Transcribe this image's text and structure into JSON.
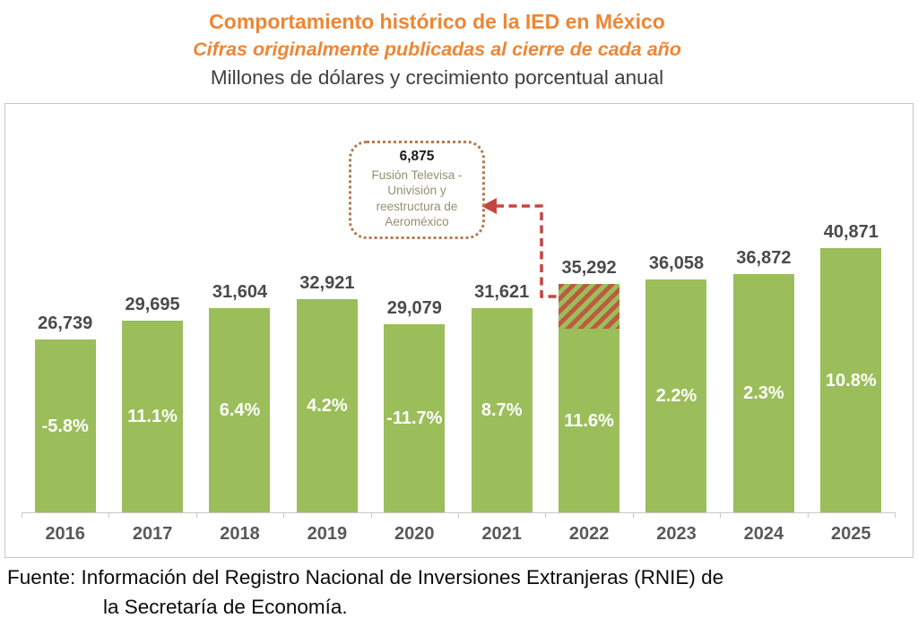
{
  "chart_data": {
    "type": "bar",
    "title": "Comportamiento histórico de la IED en México",
    "subtitle": "Cifras originalmente publicadas al cierre de cada año",
    "units_label": "Millones de dólares y crecimiento porcentual anual",
    "categories": [
      "2016",
      "2017",
      "2018",
      "2019",
      "2020",
      "2021",
      "2022",
      "2023",
      "2024",
      "2025"
    ],
    "series": [
      {
        "name": "IED (millones de dólares)",
        "values": [
          26739,
          29695,
          31604,
          32921,
          29079,
          31621,
          35292,
          36058,
          36872,
          40871
        ],
        "value_labels": [
          "26,739",
          "29,695",
          "31,604",
          "32,921",
          "29,079",
          "31,621",
          "35,292",
          "36,058",
          "36,872",
          "40,871"
        ]
      },
      {
        "name": "Crecimiento porcentual anual",
        "values": [
          -5.8,
          11.1,
          6.4,
          4.2,
          -11.7,
          8.7,
          11.6,
          2.2,
          2.3,
          10.8
        ],
        "value_labels": [
          "-5.8%",
          "11.1%",
          "6.4%",
          "4.2%",
          "-11.7%",
          "8.7%",
          "11.6%",
          "2.2%",
          "2.3%",
          "10.8%"
        ]
      }
    ],
    "ylim": [
      0,
      42000
    ],
    "grid": false,
    "legend": "none",
    "annotation": {
      "value": 6875,
      "value_label": "6,875",
      "text": "Fusión Televisa - Univisión y reestructura de Aeroméxico",
      "target_category": "2022",
      "target_index": 6,
      "hatch_value": 6875
    }
  },
  "colors": {
    "accent_orange": "#EE8633",
    "bar_green": "#9BBE5B",
    "hatch_stripe_red": "#BB5C40",
    "arrow_red": "#C64540",
    "annotation_box_border": "#B5794F",
    "annotation_text": "#94906E",
    "value_label_gray": "#4A4A4A",
    "year_label_gray": "#595959",
    "axis_gray": "#C9C9C9"
  },
  "footer": {
    "line1": "Fuente: Información del Registro Nacional de Inversiones Extranjeras (RNIE) de",
    "line2": "la Secretaría de Economía."
  }
}
